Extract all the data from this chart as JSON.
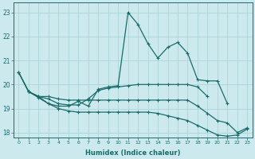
{
  "xlabel": "Humidex (Indice chaleur)",
  "x": [
    0,
    1,
    2,
    3,
    4,
    5,
    6,
    7,
    8,
    9,
    10,
    11,
    12,
    13,
    14,
    15,
    16,
    17,
    18,
    19,
    20,
    21,
    22,
    23
  ],
  "line1": [
    20.5,
    19.7,
    19.5,
    19.2,
    19.1,
    19.1,
    19.3,
    19.1,
    19.8,
    19.9,
    19.95,
    23.0,
    22.5,
    21.7,
    21.1,
    21.55,
    21.75,
    21.3,
    20.2,
    20.15,
    20.15,
    19.2,
    null,
    null
  ],
  "line2": [
    null,
    19.7,
    19.5,
    19.4,
    19.2,
    19.15,
    19.15,
    19.4,
    19.75,
    19.85,
    19.9,
    19.95,
    20.0,
    20.0,
    20.0,
    20.0,
    20.0,
    20.0,
    19.9,
    19.5,
    null,
    null,
    null,
    null
  ],
  "line3": [
    20.5,
    19.7,
    19.5,
    19.5,
    19.4,
    19.35,
    19.35,
    19.35,
    19.35,
    19.35,
    19.35,
    19.35,
    19.35,
    19.35,
    19.35,
    19.35,
    19.35,
    19.35,
    19.1,
    18.8,
    18.5,
    18.4,
    18.0,
    18.2
  ],
  "line4": [
    20.5,
    19.7,
    19.45,
    19.2,
    19.0,
    18.9,
    18.85,
    18.85,
    18.85,
    18.85,
    18.85,
    18.85,
    18.85,
    18.85,
    18.8,
    18.7,
    18.6,
    18.5,
    18.3,
    18.1,
    17.9,
    17.85,
    17.9,
    18.15
  ],
  "bg_color": "#cceaed",
  "grid_color": "#aed4d8",
  "line_color": "#1a6b6b",
  "ylim": [
    17.8,
    23.4
  ],
  "yticks": [
    18,
    19,
    20,
    21,
    22,
    23
  ],
  "xlim": [
    -0.5,
    23.5
  ]
}
